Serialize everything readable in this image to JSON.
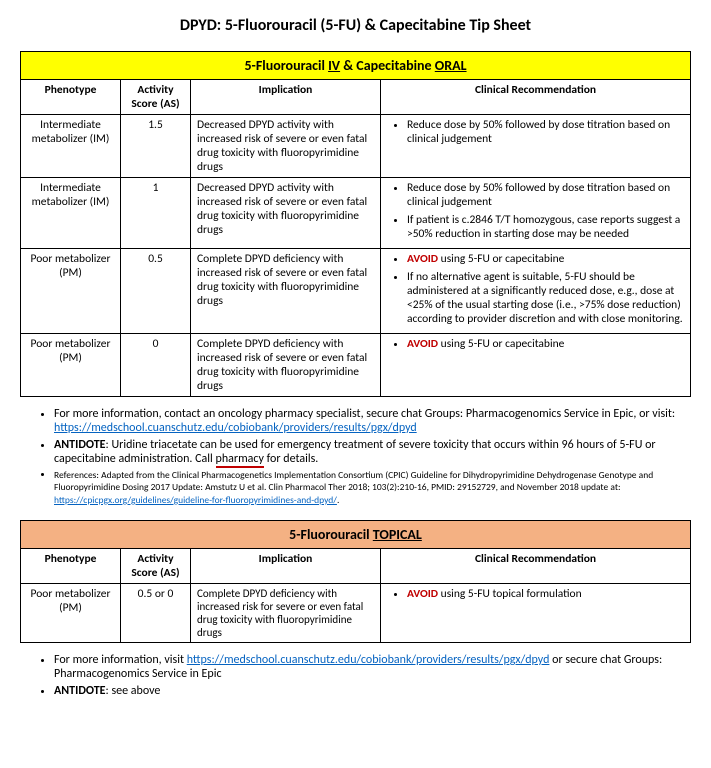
{
  "title": "DPYD: 5-Fluorouracil (5-FU) & Capecitabine Tip Sheet",
  "table1": {
    "banner_pre": "5-Fluorouracil ",
    "banner_mid": " & Capecitabine ",
    "banner_u1": "IV",
    "banner_u2": "ORAL",
    "headers": {
      "phen": "Phenotype",
      "as": "Activity Score (AS)",
      "imp": "Implication",
      "rec": "Clinical Recommendation"
    },
    "rows": [
      {
        "phen": "Intermediate metabolizer (IM)",
        "as": "1.5",
        "imp": "Decreased DPYD activity with increased risk of severe or even fatal drug toxicity with fluoropyrimidine drugs",
        "rec": [
          "Reduce dose by 50% followed by dose titration based on clinical judgement"
        ]
      },
      {
        "phen": "Intermediate metabolizer (IM)",
        "as": "1",
        "imp": "Decreased DPYD activity with increased risk of severe or even fatal drug toxicity with fluoropyrimidine drugs",
        "rec": [
          "Reduce dose by 50% followed by dose titration based on clinical judgement",
          "If patient is c.2846 T/T homozygous, case reports suggest a >50% reduction in starting dose may be needed"
        ]
      },
      {
        "phen": "Poor metabolizer (PM)",
        "as": "0.5",
        "imp": "Complete DPYD deficiency with increased risk of severe or even fatal drug toxicity with fluoropyrimidine drugs",
        "rec_avoid": "AVOID",
        "rec_avoid_tail": " using 5-FU or capecitabine",
        "rec": [
          "If no alternative agent is suitable, 5-FU should be administered at a significantly reduced dose, e.g., dose at <25% of the usual starting dose (i.e., >75% dose reduction) according to provider discretion and with close monitoring."
        ]
      },
      {
        "phen": "Poor metabolizer (PM)",
        "as": "0",
        "imp": "Complete DPYD deficiency with increased risk of severe or even fatal drug toxicity with fluoropyrimidine drugs",
        "rec_avoid": "AVOID",
        "rec_avoid_tail": " using 5-FU or capecitabine",
        "rec": []
      }
    ]
  },
  "notes1": {
    "n1_pre": "For more information, contact an oncology pharmacy specialist, secure chat Groups: Pharmacogenomics Service in Epic, or visit: ",
    "n1_link": "https://medschool.cuanschutz.edu/cobiobank/providers/results/pgx/dpyd",
    "n2_bold": "ANTIDOTE",
    "n2_a": ": Uridine triacetate can be used for emergency treatment of severe toxicity that occurs within 96 hours of 5-FU or capecitabine administration. Call ",
    "n2_pharm": "pharmacy",
    "n2_b": " for details.",
    "n3_pre": "References: Adapted from the Clinical Pharmacogenetics Implementation Consortium (CPIC) Guideline for Dihydropyrimidine Dehydrogenase Genotype and Fluoropyrimidine Dosing 2017 Update: Amstutz U et al. Clin Pharmacol Ther 2018; 103(2):210-16, PMID: 29152729, and November 2018 update at: ",
    "n3_link": "https://cpicpgx.org/guidelines/guideline-for-fluoropyrimidines-and-dpyd/",
    "n3_post": "."
  },
  "table2": {
    "banner_pre": "5-Fluorouracil ",
    "banner_u": "TOPICAL",
    "headers": {
      "phen": "Phenotype",
      "as": "Activity Score (AS)",
      "imp": "Implication",
      "rec": "Clinical Recommendation"
    },
    "row": {
      "phen": "Poor metabolizer (PM)",
      "as": "0.5 or 0",
      "imp": "Complete DPYD deficiency with increased risk for severe or even fatal drug toxicity with fluoropyrimidine drugs",
      "rec_avoid": "AVOID",
      "rec_avoid_tail": " using 5-FU topical formulation"
    }
  },
  "notes2": {
    "n1_pre": "For more information, visit ",
    "n1_link": "https://medschool.cuanschutz.edu/cobiobank/providers/results/pgx/dpyd",
    "n1_post": " or secure chat Groups: Pharmacogenomics Service in Epic",
    "n2_bold": "ANTIDOTE",
    "n2_rest": ": see above"
  }
}
